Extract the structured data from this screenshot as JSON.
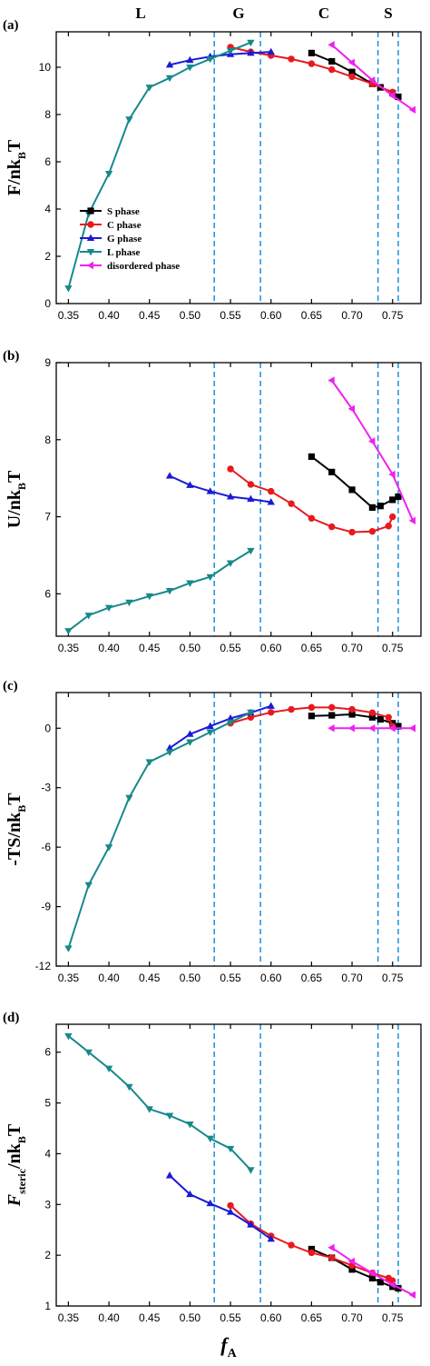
{
  "figure": {
    "region_labels": [
      "L",
      "G",
      "C",
      "S"
    ],
    "xlabel_main": "f",
    "xlabel_sub": "A"
  },
  "colors": {
    "S phase": "#000000",
    "C phase": "#e8191e",
    "G phase": "#1a1ad6",
    "L phase": "#16898a",
    "disordered phase": "#ee22ee",
    "boundary": "#1a8fe0"
  },
  "boundaries": [
    0.53,
    0.587,
    0.732,
    0.757
  ],
  "chart_data": [
    {
      "type": "line",
      "panel_label": "(a)",
      "ylabel_main": "F/nk",
      "ylabel_sub": "B",
      "ylabel_tail": "T",
      "xlim": [
        0.335,
        0.785
      ],
      "ylim": [
        0,
        11.5
      ],
      "xticks": [
        0.35,
        0.4,
        0.45,
        0.5,
        0.55,
        0.6,
        0.65,
        0.7,
        0.75
      ],
      "yticks": [
        0,
        2,
        4,
        6,
        8,
        10
      ],
      "legend": "lower-left",
      "series": [
        {
          "name": "S phase",
          "marker": "square",
          "x": [
            0.65,
            0.675,
            0.7,
            0.725,
            0.735,
            0.75,
            0.757
          ],
          "y": [
            10.6,
            10.25,
            9.8,
            9.3,
            9.15,
            8.9,
            8.75
          ]
        },
        {
          "name": "C phase",
          "marker": "circle",
          "x": [
            0.55,
            0.575,
            0.6,
            0.625,
            0.65,
            0.675,
            0.7,
            0.725,
            0.75
          ],
          "y": [
            10.85,
            10.65,
            10.5,
            10.35,
            10.15,
            9.9,
            9.6,
            9.3,
            8.95
          ]
        },
        {
          "name": "G phase",
          "marker": "triangle-up",
          "x": [
            0.475,
            0.5,
            0.525,
            0.55,
            0.575,
            0.6
          ],
          "y": [
            10.1,
            10.3,
            10.45,
            10.55,
            10.6,
            10.65
          ]
        },
        {
          "name": "L phase",
          "marker": "triangle-down",
          "x": [
            0.35,
            0.375,
            0.4,
            0.425,
            0.45,
            0.475,
            0.5,
            0.525,
            0.55,
            0.575
          ],
          "y": [
            0.65,
            3.8,
            5.5,
            7.8,
            9.15,
            9.55,
            10.0,
            10.35,
            10.7,
            11.05
          ]
        },
        {
          "name": "disordered phase",
          "marker": "triangle-left",
          "x": [
            0.675,
            0.7,
            0.725,
            0.75,
            0.775
          ],
          "y": [
            10.95,
            10.2,
            9.45,
            8.8,
            8.2
          ]
        }
      ]
    },
    {
      "type": "line",
      "panel_label": "(b)",
      "ylabel_main": "U/nk",
      "ylabel_sub": "B",
      "ylabel_tail": "T",
      "xlim": [
        0.335,
        0.785
      ],
      "ylim": [
        5.45,
        9.0
      ],
      "xticks": [
        0.35,
        0.4,
        0.45,
        0.5,
        0.55,
        0.6,
        0.65,
        0.7,
        0.75
      ],
      "yticks": [
        6,
        7,
        8,
        9
      ],
      "series": [
        {
          "name": "S phase",
          "marker": "square",
          "x": [
            0.65,
            0.675,
            0.7,
            0.725,
            0.735,
            0.75,
            0.757
          ],
          "y": [
            7.78,
            7.58,
            7.35,
            7.12,
            7.14,
            7.22,
            7.26
          ]
        },
        {
          "name": "C phase",
          "marker": "circle",
          "x": [
            0.55,
            0.575,
            0.6,
            0.625,
            0.65,
            0.675,
            0.7,
            0.725,
            0.745,
            0.75
          ],
          "y": [
            7.62,
            7.42,
            7.33,
            7.17,
            6.98,
            6.87,
            6.8,
            6.81,
            6.88,
            7.0
          ]
        },
        {
          "name": "G phase",
          "marker": "triangle-up",
          "x": [
            0.475,
            0.5,
            0.525,
            0.55,
            0.575,
            0.6
          ],
          "y": [
            7.53,
            7.41,
            7.33,
            7.26,
            7.23,
            7.19
          ]
        },
        {
          "name": "L phase",
          "marker": "triangle-down",
          "x": [
            0.35,
            0.375,
            0.4,
            0.425,
            0.45,
            0.475,
            0.5,
            0.525,
            0.55,
            0.575
          ],
          "y": [
            5.52,
            5.72,
            5.82,
            5.89,
            5.97,
            6.04,
            6.14,
            6.22,
            6.4,
            6.56
          ]
        },
        {
          "name": "disordered phase",
          "marker": "triangle-left",
          "x": [
            0.675,
            0.7,
            0.725,
            0.75,
            0.775
          ],
          "y": [
            8.77,
            8.4,
            7.98,
            7.55,
            6.95
          ]
        }
      ]
    },
    {
      "type": "line",
      "panel_label": "(c)",
      "ylabel_main": "-TS/nk",
      "ylabel_sub": "B",
      "ylabel_tail": "T",
      "xlim": [
        0.335,
        0.785
      ],
      "ylim": [
        -12,
        1.8
      ],
      "xticks": [
        0.35,
        0.4,
        0.45,
        0.5,
        0.55,
        0.6,
        0.65,
        0.7,
        0.75
      ],
      "yticks": [
        -12,
        -9,
        -6,
        -3,
        0
      ],
      "series": [
        {
          "name": "S phase",
          "marker": "square",
          "x": [
            0.65,
            0.675,
            0.7,
            0.725,
            0.735,
            0.75,
            0.757
          ],
          "y": [
            0.62,
            0.65,
            0.7,
            0.55,
            0.45,
            0.25,
            0.1
          ]
        },
        {
          "name": "C phase",
          "marker": "circle",
          "x": [
            0.55,
            0.575,
            0.6,
            0.625,
            0.65,
            0.675,
            0.7,
            0.725,
            0.745,
            0.75
          ],
          "y": [
            0.25,
            0.55,
            0.8,
            0.95,
            1.05,
            1.05,
            0.95,
            0.78,
            0.55,
            0.1
          ]
        },
        {
          "name": "G phase",
          "marker": "triangle-up",
          "x": [
            0.475,
            0.5,
            0.525,
            0.55,
            0.575,
            0.6
          ],
          "y": [
            -1.0,
            -0.3,
            0.1,
            0.5,
            0.78,
            1.12
          ]
        },
        {
          "name": "L phase",
          "marker": "triangle-down",
          "x": [
            0.35,
            0.375,
            0.4,
            0.425,
            0.45,
            0.475,
            0.5,
            0.525,
            0.55,
            0.575
          ],
          "y": [
            -11.1,
            -7.9,
            -6.0,
            -3.5,
            -1.7,
            -1.2,
            -0.7,
            -0.2,
            0.3,
            0.8
          ]
        },
        {
          "name": "disordered phase",
          "marker": "triangle-left",
          "x": [
            0.675,
            0.7,
            0.725,
            0.75,
            0.775
          ],
          "y": [
            0,
            0,
            0,
            0,
            0
          ]
        }
      ]
    },
    {
      "type": "line",
      "panel_label": "(d)",
      "ylabel_main": "F",
      "ylabel_sub": "steric",
      "ylabel_mid": "/nk",
      "ylabel_sub2": "B",
      "ylabel_tail": "T",
      "xlim": [
        0.335,
        0.785
      ],
      "ylim": [
        1.0,
        6.55
      ],
      "xticks": [
        0.35,
        0.4,
        0.45,
        0.5,
        0.55,
        0.6,
        0.65,
        0.7,
        0.75
      ],
      "yticks": [
        1,
        2,
        3,
        4,
        5,
        6
      ],
      "series": [
        {
          "name": "S phase",
          "marker": "square",
          "x": [
            0.65,
            0.675,
            0.7,
            0.725,
            0.735,
            0.75,
            0.757
          ],
          "y": [
            2.12,
            1.95,
            1.72,
            1.55,
            1.47,
            1.38,
            1.35
          ]
        },
        {
          "name": "C phase",
          "marker": "circle",
          "x": [
            0.55,
            0.575,
            0.6,
            0.625,
            0.65,
            0.675,
            0.7,
            0.725,
            0.745,
            0.75
          ],
          "y": [
            2.98,
            2.62,
            2.38,
            2.2,
            2.05,
            1.95,
            1.8,
            1.65,
            1.55,
            1.5
          ]
        },
        {
          "name": "G phase",
          "marker": "triangle-up",
          "x": [
            0.475,
            0.5,
            0.525,
            0.55,
            0.575,
            0.6
          ],
          "y": [
            3.57,
            3.2,
            3.02,
            2.85,
            2.6,
            2.32
          ]
        },
        {
          "name": "L phase",
          "marker": "triangle-down",
          "x": [
            0.35,
            0.375,
            0.4,
            0.425,
            0.45,
            0.475,
            0.5,
            0.525,
            0.55,
            0.575
          ],
          "y": [
            6.32,
            6.0,
            5.68,
            5.32,
            4.88,
            4.75,
            4.58,
            4.3,
            4.1,
            3.68
          ]
        },
        {
          "name": "disordered phase",
          "marker": "triangle-left",
          "x": [
            0.675,
            0.7,
            0.725,
            0.75,
            0.775
          ],
          "y": [
            2.15,
            1.88,
            1.65,
            1.42,
            1.22
          ]
        }
      ]
    }
  ]
}
